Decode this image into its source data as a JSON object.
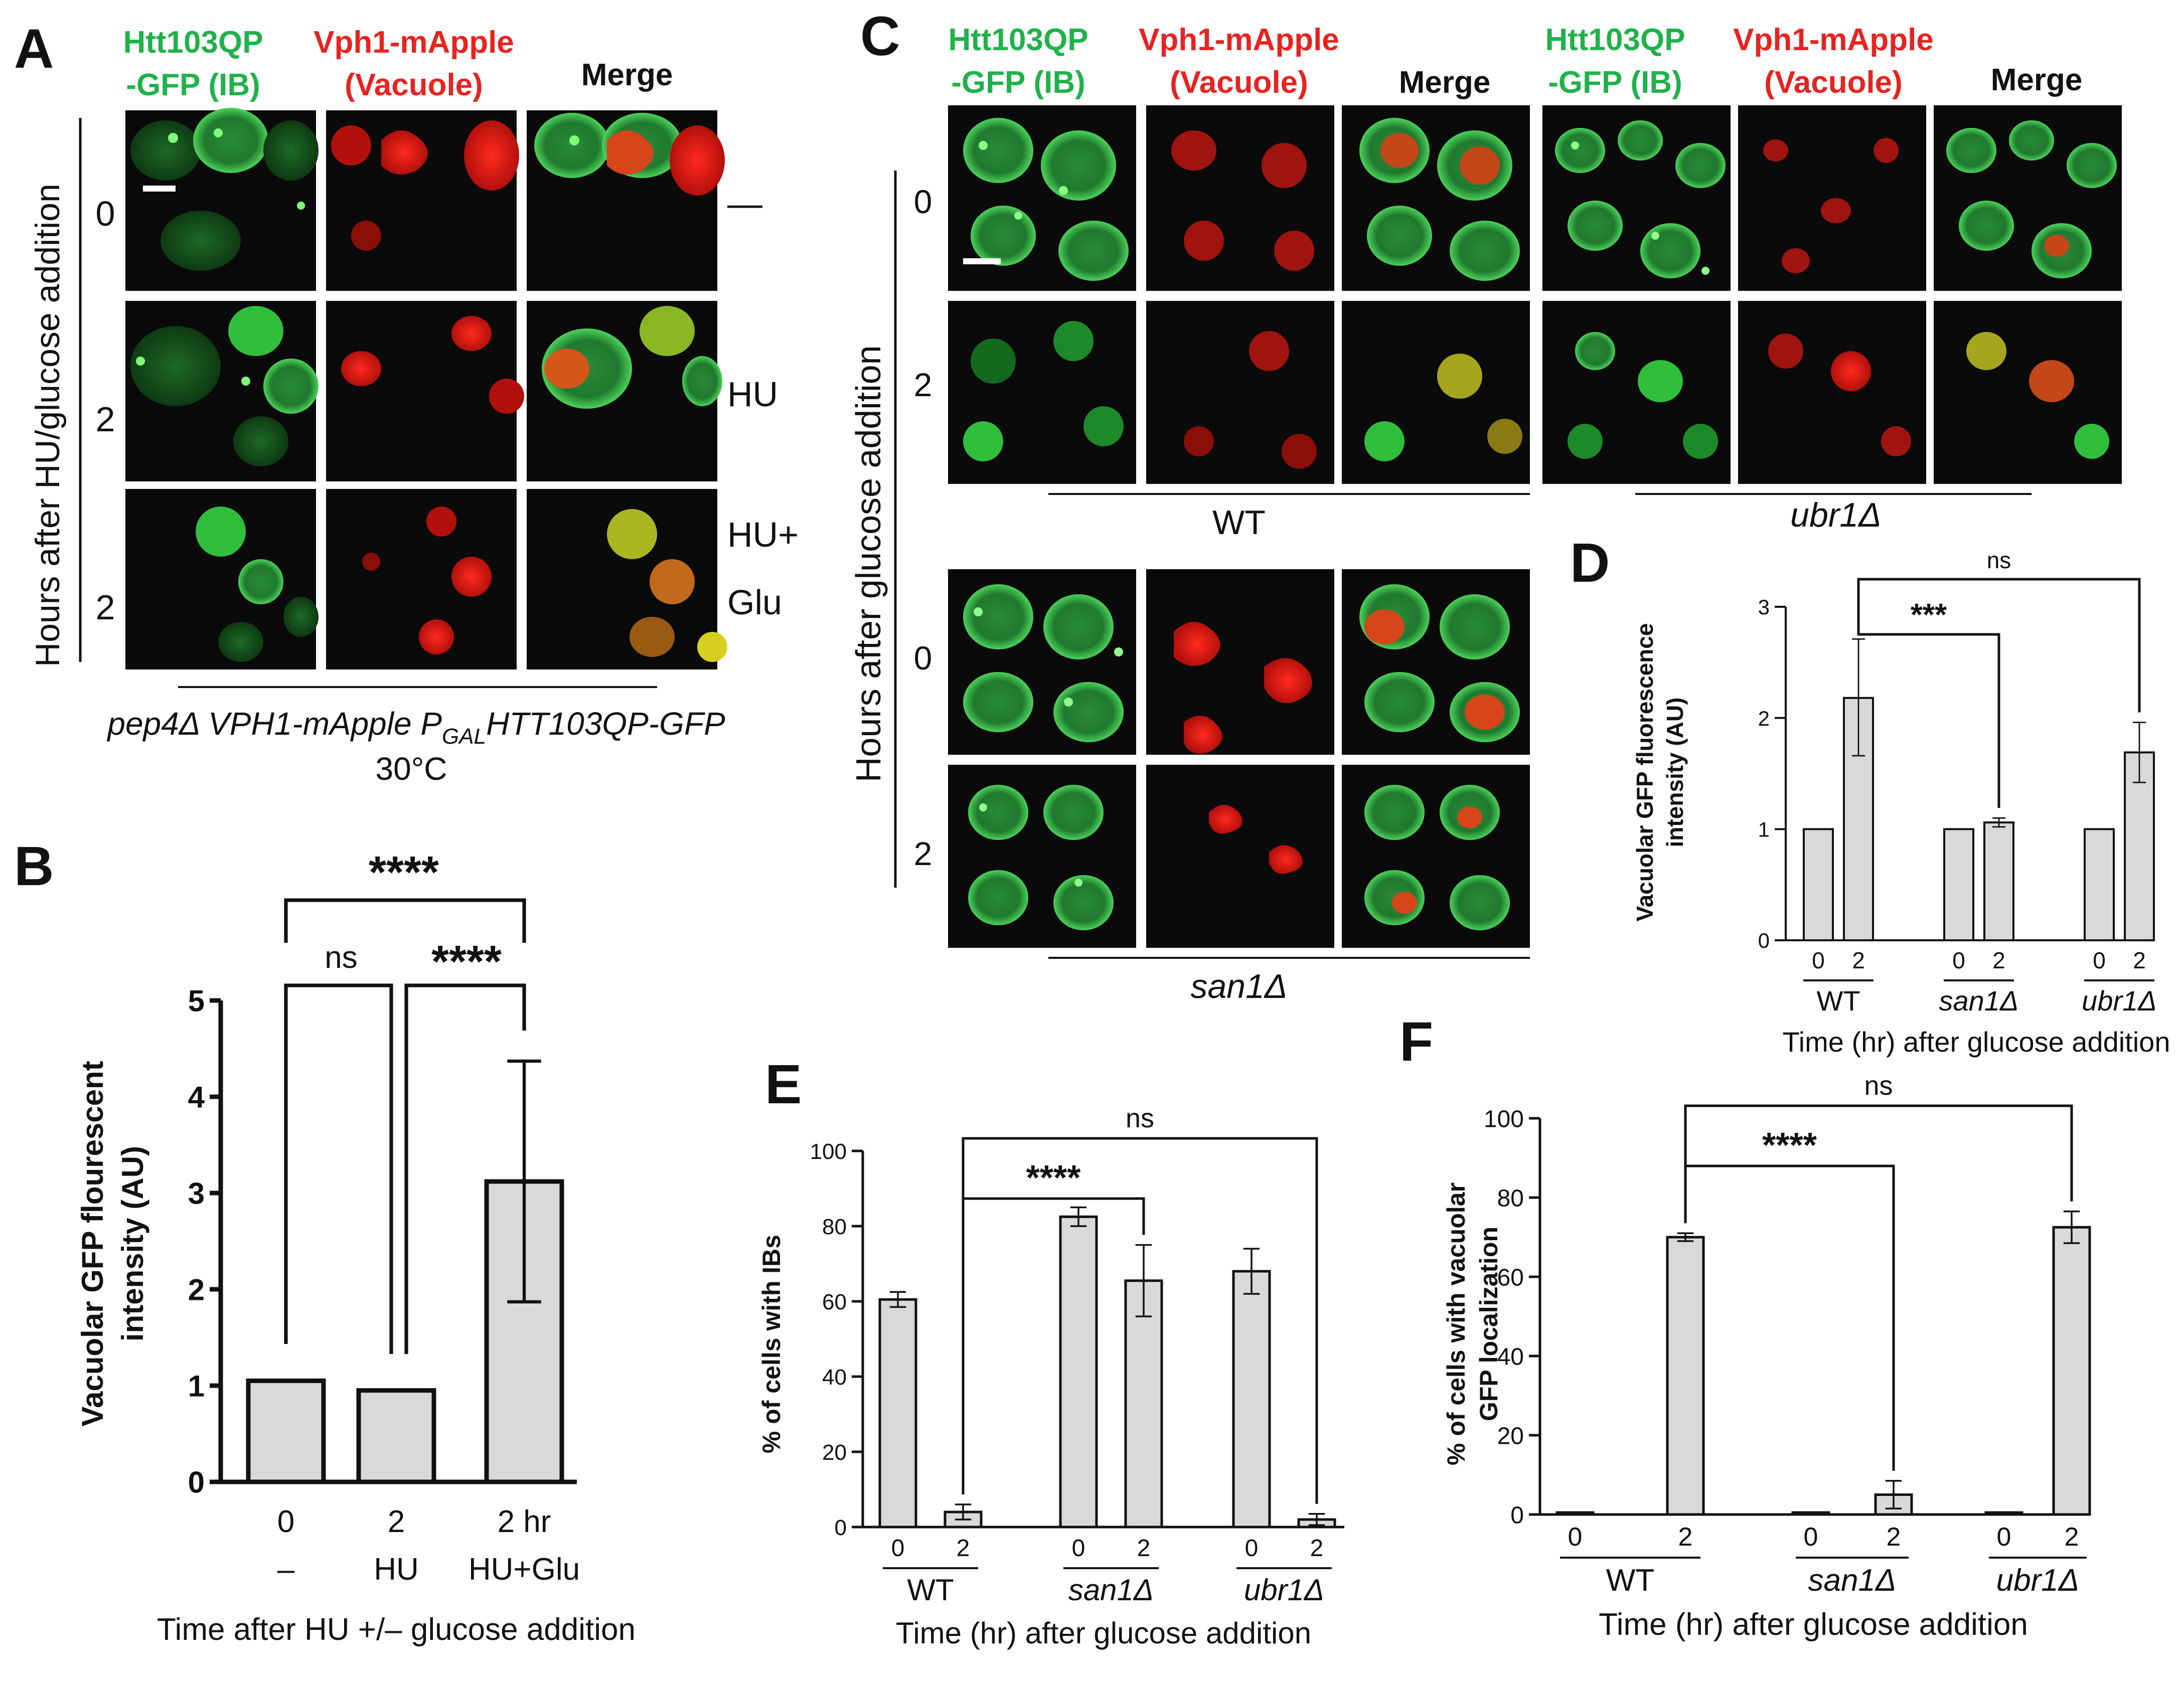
{
  "figure": {
    "panel_letters": {
      "A": "A",
      "B": "B",
      "C": "C",
      "D": "D",
      "E": "E",
      "F": "F"
    },
    "channels": {
      "gfp_line1": "Htt103QP",
      "gfp_line2": "-GFP (IB)",
      "vac_line1": "Vph1-mApple",
      "vac_line2": "(Vacuole)",
      "merge": "Merge"
    },
    "colors": {
      "gfp": "#1fb24a",
      "vac": "#e8231f",
      "bar_fill": "#d9d9d9",
      "text": "#111111"
    },
    "panel_a": {
      "yaxis_title": "Hours after HU/glucose addition",
      "row_times": [
        "0",
        "2",
        "2"
      ],
      "row_conditions": [
        "—",
        "HU",
        "HU+\nGlu"
      ],
      "genotype": "pep4Δ VPH1-mApple P",
      "genotype_sub": "GAL",
      "genotype_rest": "HTT103QP-GFP",
      "temperature": "30°C"
    },
    "panel_c": {
      "yaxis_title": "Hours after glucose addition",
      "row_times": [
        "0",
        "2",
        "0",
        "2"
      ],
      "strains": [
        "WT",
        "ubr1Δ",
        "san1Δ"
      ]
    }
  },
  "chart_data": [
    {
      "panel": "B",
      "type": "bar",
      "categories": [
        "0",
        "2",
        "2 hr"
      ],
      "category_sublabels": [
        "–",
        "HU",
        "HU+Glu"
      ],
      "values": [
        1.05,
        0.95,
        3.12
      ],
      "error_low": [
        null,
        null,
        1.87
      ],
      "error_high": [
        null,
        null,
        4.37
      ],
      "ylabel_line1": "Vacuolar GFP flourescent",
      "ylabel_line2": "intensity (AU)",
      "xlabel": "Time after HU +/– glucose addition",
      "ylim": [
        0,
        5
      ],
      "yticks": [
        "0",
        "1",
        "2",
        "3",
        "4",
        "5"
      ],
      "significance": [
        "****",
        "ns",
        "****"
      ]
    },
    {
      "panel": "D",
      "type": "bar",
      "categories": [
        "0",
        "2",
        "0",
        "2",
        "0",
        "2"
      ],
      "groups": [
        "WT",
        "san1Δ",
        "ubr1Δ"
      ],
      "values": [
        1.0,
        2.18,
        1.0,
        1.06,
        1.0,
        1.69
      ],
      "error_low": [
        null,
        1.66,
        null,
        1.02,
        null,
        1.42
      ],
      "error_high": [
        null,
        2.71,
        null,
        1.1,
        null,
        1.96
      ],
      "ylabel_line1": "Vacuolar GFP fluorescence",
      "ylabel_line2": "intensity (AU)",
      "xlabel": "Time (hr) after glucose addition",
      "ylim": [
        0,
        3
      ],
      "yticks": [
        "0",
        "1",
        "2",
        "3"
      ],
      "significance": [
        "ns",
        "***"
      ]
    },
    {
      "panel": "E",
      "type": "bar",
      "categories": [
        "0",
        "2",
        "0",
        "2",
        "0",
        "2"
      ],
      "groups": [
        "WT",
        "san1Δ",
        "ubr1Δ"
      ],
      "values": [
        60.5,
        4.0,
        82.5,
        65.5,
        68.0,
        2.0
      ],
      "error_low": [
        58.5,
        2.0,
        80.0,
        56.0,
        62.0,
        0.5
      ],
      "error_high": [
        62.5,
        6.0,
        85.0,
        75.0,
        74.0,
        3.5
      ],
      "ylabel": "% of cells with IBs",
      "xlabel": "Time (hr) after glucose addition",
      "ylim": [
        0,
        100
      ],
      "yticks": [
        "0",
        "20",
        "40",
        "60",
        "80",
        "100"
      ],
      "significance": [
        "ns",
        "****"
      ]
    },
    {
      "panel": "F",
      "type": "bar",
      "categories": [
        "0",
        "2",
        "0",
        "2",
        "0",
        "2"
      ],
      "groups": [
        "WT",
        "san1Δ",
        "ubr1Δ"
      ],
      "values": [
        0.5,
        70.0,
        0.5,
        5.0,
        0.5,
        72.5
      ],
      "error_low": [
        null,
        69.0,
        null,
        1.5,
        null,
        68.5
      ],
      "error_high": [
        null,
        71.0,
        null,
        8.5,
        null,
        76.5
      ],
      "ylabel_line1": "% of cells with vacuolar",
      "ylabel_line2": "GFP localization",
      "xlabel": "Time (hr) after glucose addition",
      "ylim": [
        0,
        100
      ],
      "yticks": [
        "0",
        "20",
        "40",
        "60",
        "80",
        "100"
      ],
      "significance": [
        "ns",
        "****"
      ]
    }
  ]
}
